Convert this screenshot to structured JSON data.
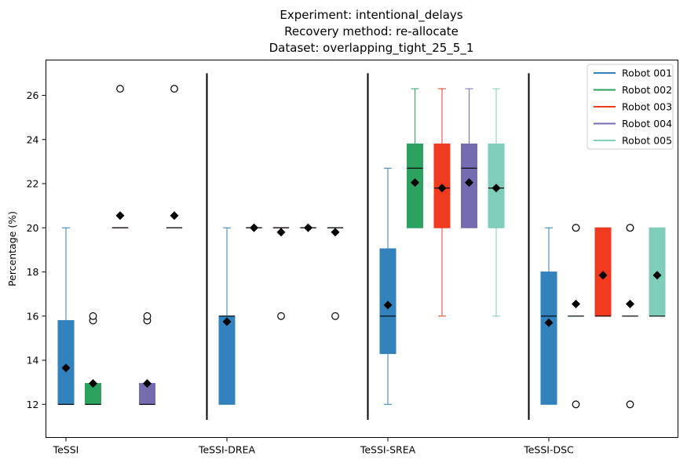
{
  "chart_data": {
    "type": "box",
    "title_lines": [
      "Experiment: intentional_delays",
      "Recovery method: re-allocate",
      "Dataset: overlapping_tight_25_5_1"
    ],
    "xlabel": "",
    "ylabel": "Percentage (%)",
    "ylim": [
      10.5,
      27.6
    ],
    "yticks": [
      12,
      14,
      16,
      18,
      20,
      22,
      24,
      26
    ],
    "groups": [
      "TeSSI",
      "TeSSI-DREA",
      "TeSSI-SREA",
      "TeSSI-DSC"
    ],
    "legend": {
      "placement": "top-right"
    },
    "series": [
      {
        "name": "Robot 001",
        "color": "#3182bd",
        "boxes": [
          {
            "whislo": 12,
            "q1": 12,
            "median": 12,
            "q3": 15.8,
            "whishi": 20,
            "mean": 13.65,
            "fliers": []
          },
          {
            "whislo": 12,
            "q1": 12,
            "median": 16,
            "q3": 16,
            "whishi": 20,
            "mean": 15.75,
            "fliers": []
          },
          {
            "whislo": 12,
            "q1": 14.3,
            "median": 16,
            "q3": 19.05,
            "whishi": 22.7,
            "mean": 16.5,
            "fliers": []
          },
          {
            "whislo": 12,
            "q1": 12,
            "median": 16,
            "q3": 18,
            "whishi": 20,
            "mean": 15.7,
            "fliers": []
          }
        ]
      },
      {
        "name": "Robot 002",
        "color": "#2ca25f",
        "boxes": [
          {
            "whislo": 12,
            "q1": 12,
            "median": 12,
            "q3": 12.95,
            "whishi": 12.95,
            "mean": 12.95,
            "fliers": [
              15.8,
              16.0
            ]
          },
          {
            "whislo": 20,
            "q1": 20,
            "median": 20,
            "q3": 20,
            "whishi": 20,
            "mean": 20,
            "fliers": []
          },
          {
            "whislo": 20,
            "q1": 20,
            "median": 22.7,
            "q3": 23.8,
            "whishi": 26.3,
            "mean": 22.05,
            "fliers": []
          },
          {
            "whislo": 16,
            "q1": 16,
            "median": 16,
            "q3": 16,
            "whishi": 16,
            "mean": 16.55,
            "fliers": [
              12,
              20,
              20
            ]
          }
        ]
      },
      {
        "name": "Robot 003",
        "color": "#f03b20",
        "boxes": [
          {
            "whislo": 20,
            "q1": 20,
            "median": 20,
            "q3": 20,
            "whishi": 20,
            "mean": 20.55,
            "fliers": [
              26.3
            ]
          },
          {
            "whislo": 20,
            "q1": 20,
            "median": 20,
            "q3": 20,
            "whishi": 20,
            "mean": 19.8,
            "fliers": [
              16
            ]
          },
          {
            "whislo": 16,
            "q1": 20,
            "median": 21.8,
            "q3": 23.8,
            "whishi": 26.3,
            "mean": 21.8,
            "fliers": []
          },
          {
            "whislo": 16,
            "q1": 16,
            "median": 16,
            "q3": 20,
            "whishi": 20,
            "mean": 17.85,
            "fliers": []
          }
        ]
      },
      {
        "name": "Robot 004",
        "color": "#756bb1",
        "boxes": [
          {
            "whislo": 12,
            "q1": 12,
            "median": 12,
            "q3": 12.95,
            "whishi": 12.95,
            "mean": 12.95,
            "fliers": [
              15.8,
              16.0
            ]
          },
          {
            "whislo": 20,
            "q1": 20,
            "median": 20,
            "q3": 20,
            "whishi": 20,
            "mean": 20,
            "fliers": []
          },
          {
            "whislo": 20,
            "q1": 20,
            "median": 22.7,
            "q3": 23.8,
            "whishi": 26.3,
            "mean": 22.05,
            "fliers": []
          },
          {
            "whislo": 16,
            "q1": 16,
            "median": 16,
            "q3": 16,
            "whishi": 16,
            "mean": 16.55,
            "fliers": [
              12,
              20,
              20
            ]
          }
        ]
      },
      {
        "name": "Robot 005",
        "color": "#7fcdbb",
        "boxes": [
          {
            "whislo": 20,
            "q1": 20,
            "median": 20,
            "q3": 20,
            "whishi": 20,
            "mean": 20.55,
            "fliers": [
              26.3
            ]
          },
          {
            "whislo": 20,
            "q1": 20,
            "median": 20,
            "q3": 20,
            "whishi": 20,
            "mean": 19.8,
            "fliers": [
              16
            ]
          },
          {
            "whislo": 16,
            "q1": 20,
            "median": 21.8,
            "q3": 23.8,
            "whishi": 26.3,
            "mean": 21.8,
            "fliers": []
          },
          {
            "whislo": 16,
            "q1": 16,
            "median": 16,
            "q3": 20,
            "whishi": 20,
            "mean": 17.85,
            "fliers": []
          }
        ]
      }
    ]
  }
}
